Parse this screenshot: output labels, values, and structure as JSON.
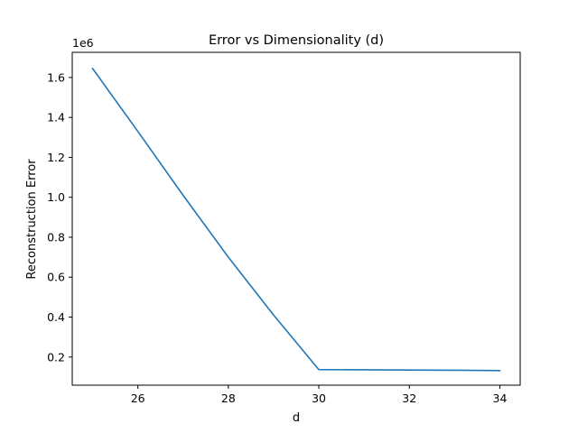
{
  "chart_data": {
    "type": "line",
    "title": "Error vs Dimensionality (d)",
    "xlabel": "d",
    "ylabel": "Reconstruction Error",
    "y_offset_label": "1e6",
    "xlim": [
      24.55,
      34.45
    ],
    "ylim": [
      0.059,
      1.726
    ],
    "y_scale_factor": 1000000,
    "x_ticks": [
      26,
      28,
      30,
      32,
      34
    ],
    "x_tick_labels": [
      "26",
      "28",
      "30",
      "32",
      "34"
    ],
    "y_ticks": [
      0.2,
      0.4,
      0.6,
      0.8,
      1.0,
      1.2,
      1.4,
      1.6
    ],
    "y_tick_labels": [
      "0.2",
      "0.4",
      "0.6",
      "0.8",
      "1.0",
      "1.2",
      "1.4",
      "1.6"
    ],
    "grid": false,
    "series": [
      {
        "color": "#1f77b4",
        "x": [
          25,
          26,
          27,
          28,
          29,
          30,
          31,
          32,
          33,
          34
        ],
        "y": [
          1.645,
          1.33,
          1.01,
          0.7,
          0.41,
          0.137,
          0.136,
          0.135,
          0.134,
          0.132
        ]
      }
    ]
  }
}
